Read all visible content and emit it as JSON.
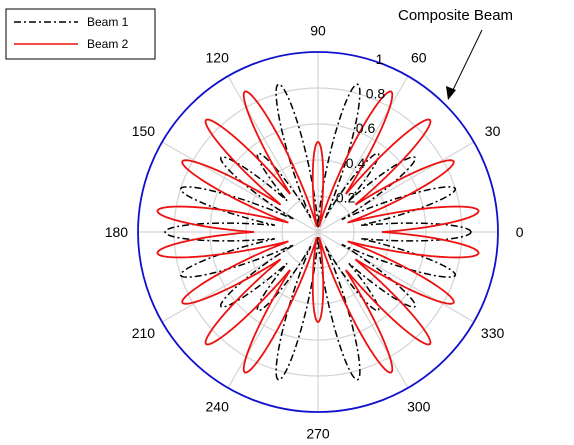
{
  "chart_data": {
    "type": "polar-line",
    "angle_unit": "degrees",
    "radial_range": [
      0,
      1
    ],
    "radial_ticks": [
      "0.2",
      "0.4",
      "0.6",
      "0.8",
      "1"
    ],
    "angle_ticks": [
      "0",
      "30",
      "60",
      "90",
      "120",
      "150",
      "180",
      "210",
      "240",
      "270",
      "300",
      "330"
    ],
    "grid": true,
    "legend_position": "top-left",
    "annotation": "Composite Beam",
    "series": [
      {
        "name": "Beam 1",
        "color": "#000000",
        "style": "dash-dot",
        "lobe_peaks_deg": [
          0,
          17.5,
          37.5,
          52.5,
          75,
          105,
          127.5,
          142.5,
          162.5,
          180,
          197.5,
          217.5,
          232.5,
          255,
          285,
          307.5,
          322.5,
          342.5
        ],
        "lobe_amplitude": [
          0.85,
          0.8,
          0.68,
          0.55,
          0.85,
          0.85,
          0.55,
          0.68,
          0.8,
          0.85,
          0.8,
          0.68,
          0.55,
          0.85,
          0.85,
          0.55,
          0.68,
          0.8
        ]
      },
      {
        "name": "Beam 2",
        "color": "#ee1111",
        "style": "solid",
        "lobe_peaks_deg": [
          7.5,
          27.5,
          45,
          62.5,
          90,
          117.5,
          135,
          152.5,
          172.5,
          187.5,
          207.5,
          225,
          242.5,
          270,
          297.5,
          315,
          332.5,
          352.5
        ],
        "lobe_amplitude": [
          0.9,
          0.85,
          0.88,
          0.88,
          0.5,
          0.88,
          0.88,
          0.85,
          0.9,
          0.9,
          0.85,
          0.88,
          0.88,
          0.5,
          0.88,
          0.88,
          0.85,
          0.9
        ]
      },
      {
        "name": "Composite Beam",
        "color": "#1111cc",
        "style": "solid",
        "constant_r": 1
      }
    ]
  }
}
